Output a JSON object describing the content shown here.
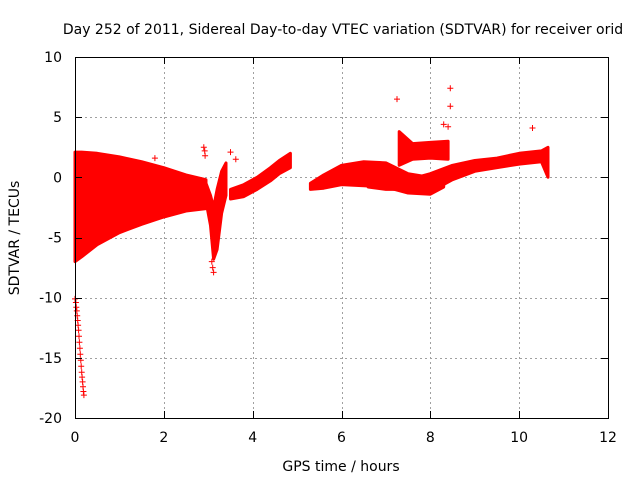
{
  "chart_data": {
    "type": "scatter",
    "title": "Day 252 of 2011, Sidereal Day-to-day VTEC variation (SDTVAR) for receiver orid",
    "xlabel": "GPS time / hours",
    "ylabel": "SDTVAR / TECUs",
    "xlim": [
      0,
      12
    ],
    "ylim": [
      -20,
      10
    ],
    "x_ticks": [
      0,
      2,
      4,
      6,
      8,
      10,
      12
    ],
    "y_ticks": [
      -20,
      -15,
      -10,
      -5,
      0,
      5,
      10
    ],
    "grid": true,
    "marker": "+",
    "color": "#ff0000",
    "dense_bands": [
      {
        "x": [
          0.0,
          0.15,
          0.5,
          1.0,
          1.5,
          2.0,
          2.5,
          2.95
        ],
        "ymin": [
          -7.0,
          -6.6,
          -5.6,
          -4.6,
          -3.9,
          -3.3,
          -2.8,
          -2.6
        ],
        "ymax": [
          2.1,
          2.1,
          2.0,
          1.7,
          1.3,
          0.8,
          0.2,
          -0.2
        ]
      },
      {
        "x": [
          2.95,
          3.05,
          3.12,
          3.2,
          3.3,
          3.4
        ],
        "ymin": [
          -2.0,
          -4.0,
          -6.8,
          -6.0,
          -3.0,
          -1.5
        ],
        "ymax": [
          -0.5,
          -1.5,
          -2.5,
          -1.0,
          0.5,
          1.2
        ]
      },
      {
        "x": [
          3.5,
          3.8,
          4.1,
          4.4,
          4.6,
          4.85
        ],
        "ymin": [
          -1.8,
          -1.6,
          -1.0,
          -0.3,
          0.3,
          0.8
        ],
        "ymax": [
          -1.0,
          -0.6,
          0.0,
          0.8,
          1.4,
          2.0
        ]
      },
      {
        "x": [
          5.3,
          5.6,
          6.0,
          6.5,
          7.0,
          7.5,
          8.0,
          8.3
        ],
        "ymin": [
          -1.0,
          -0.9,
          -0.6,
          -0.7,
          -0.8,
          -1.3,
          -1.4,
          -0.8
        ],
        "ymax": [
          -0.5,
          0.2,
          1.0,
          1.3,
          1.2,
          0.3,
          0.0,
          0.2
        ]
      },
      {
        "x": [
          6.6,
          7.0,
          7.5,
          8.0,
          8.5,
          9.0,
          9.5,
          10.0,
          10.5,
          10.65
        ],
        "ymin": [
          -0.8,
          -1.0,
          -1.0,
          -1.2,
          -0.2,
          0.5,
          0.8,
          1.1,
          1.3,
          0.0
        ],
        "ymax": [
          0.6,
          0.2,
          -0.2,
          0.3,
          1.0,
          1.4,
          1.6,
          2.0,
          2.2,
          2.5
        ]
      },
      {
        "x": [
          7.3,
          7.6,
          8.0,
          8.4
        ],
        "ymin": [
          1.0,
          1.5,
          1.6,
          1.5
        ],
        "ymax": [
          3.8,
          2.8,
          2.9,
          3.0
        ]
      }
    ],
    "points": [
      {
        "x": 0.0,
        "y": -10.1
      },
      {
        "x": 0.02,
        "y": -10.4
      },
      {
        "x": 0.03,
        "y": -10.8
      },
      {
        "x": 0.04,
        "y": -11.1
      },
      {
        "x": 0.05,
        "y": -11.5
      },
      {
        "x": 0.06,
        "y": -11.9
      },
      {
        "x": 0.07,
        "y": -12.3
      },
      {
        "x": 0.08,
        "y": -12.7
      },
      {
        "x": 0.09,
        "y": -13.2
      },
      {
        "x": 0.1,
        "y": -13.7
      },
      {
        "x": 0.11,
        "y": -14.2
      },
      {
        "x": 0.12,
        "y": -14.7
      },
      {
        "x": 0.13,
        "y": -15.2
      },
      {
        "x": 0.14,
        "y": -15.7
      },
      {
        "x": 0.15,
        "y": -16.2
      },
      {
        "x": 0.16,
        "y": -16.6
      },
      {
        "x": 0.17,
        "y": -17.0
      },
      {
        "x": 0.18,
        "y": -17.4
      },
      {
        "x": 0.19,
        "y": -17.8
      },
      {
        "x": 0.2,
        "y": -18.1
      },
      {
        "x": 1.8,
        "y": 1.6
      },
      {
        "x": 2.9,
        "y": 2.5
      },
      {
        "x": 2.92,
        "y": 2.2
      },
      {
        "x": 2.93,
        "y": 1.8
      },
      {
        "x": 3.08,
        "y": -7.0
      },
      {
        "x": 3.1,
        "y": -7.5
      },
      {
        "x": 3.12,
        "y": -7.9
      },
      {
        "x": 3.5,
        "y": 2.1
      },
      {
        "x": 3.62,
        "y": 1.5
      },
      {
        "x": 7.25,
        "y": 6.5
      },
      {
        "x": 8.3,
        "y": 4.4
      },
      {
        "x": 8.4,
        "y": 4.2
      },
      {
        "x": 8.45,
        "y": 7.4
      },
      {
        "x": 8.45,
        "y": 5.9
      },
      {
        "x": 10.3,
        "y": 4.1
      }
    ]
  }
}
